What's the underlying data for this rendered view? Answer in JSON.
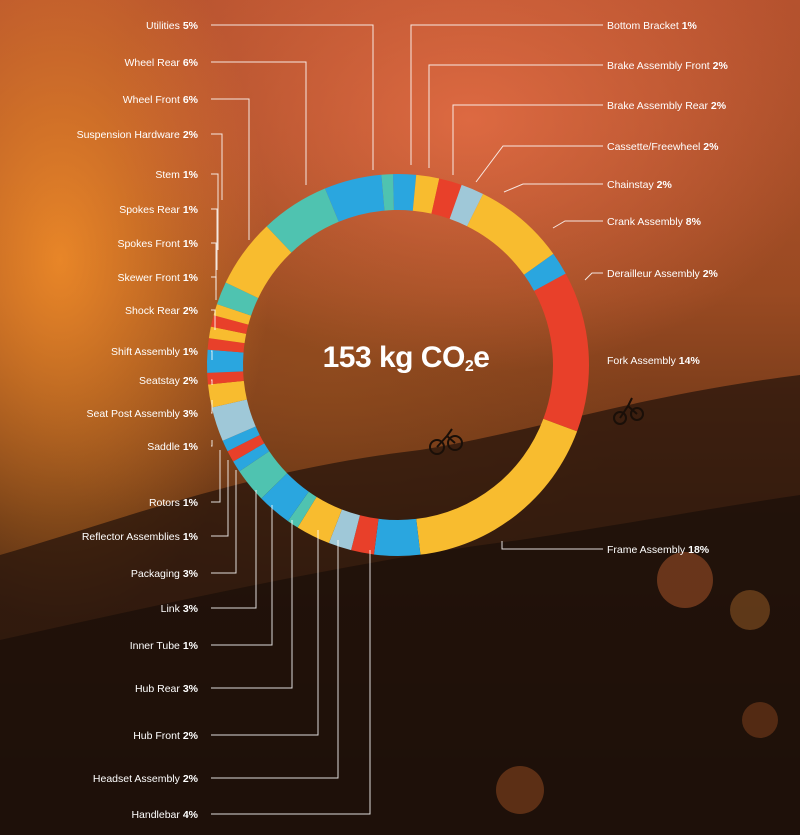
{
  "total": {
    "value": "153 kg CO",
    "sub": "2",
    "suffix": "e"
  },
  "colors": {
    "yellow": "#f8bc2f",
    "blue": "#2aa6df",
    "teal": "#4fc3b0",
    "red": "#e8402a",
    "lightblue": "#9fc8d8"
  },
  "chart_data": {
    "type": "pie",
    "variant": "donut",
    "unit": "%",
    "slices": [
      {
        "label": "Utilities",
        "value": 5,
        "side": "left"
      },
      {
        "label": "Wheel Rear",
        "value": 6,
        "side": "left"
      },
      {
        "label": "Wheel Front",
        "value": 6,
        "side": "left"
      },
      {
        "label": "Suspension Hardware",
        "value": 2,
        "side": "left"
      },
      {
        "label": "Stem",
        "value": 1,
        "side": "left"
      },
      {
        "label": "Spokes Rear",
        "value": 1,
        "side": "left"
      },
      {
        "label": "Spokes Front",
        "value": 1,
        "side": "left"
      },
      {
        "label": "Skewer Front",
        "value": 1,
        "side": "left"
      },
      {
        "label": "Shock Rear",
        "value": 2,
        "side": "left"
      },
      {
        "label": "Shift Assembly",
        "value": 1,
        "side": "left"
      },
      {
        "label": "Seatstay",
        "value": 2,
        "side": "left"
      },
      {
        "label": "Seat Post Assembly",
        "value": 3,
        "side": "left"
      },
      {
        "label": "Saddle",
        "value": 1,
        "side": "left"
      },
      {
        "label": "Rotors",
        "value": 1,
        "side": "left"
      },
      {
        "label": "Reflector Assemblies",
        "value": 1,
        "side": "left"
      },
      {
        "label": "Packaging",
        "value": 3,
        "side": "left"
      },
      {
        "label": "Link",
        "value": 3,
        "side": "left"
      },
      {
        "label": "Inner Tube",
        "value": 1,
        "side": "left"
      },
      {
        "label": "Hub Rear",
        "value": 3,
        "side": "left"
      },
      {
        "label": "Hub Front",
        "value": 2,
        "side": "left"
      },
      {
        "label": "Headset Assembly",
        "value": 2,
        "side": "left"
      },
      {
        "label": "Handlebar",
        "value": 4,
        "side": "left"
      },
      {
        "label": "Bottom Bracket",
        "value": 1,
        "side": "right"
      },
      {
        "label": "Brake Assembly Front",
        "value": 2,
        "side": "right"
      },
      {
        "label": "Brake Assembly Rear",
        "value": 2,
        "side": "right"
      },
      {
        "label": "Cassette/Freewheel",
        "value": 2,
        "side": "right"
      },
      {
        "label": "Chainstay",
        "value": 2,
        "side": "right"
      },
      {
        "label": "Crank Assembly",
        "value": 8,
        "side": "right"
      },
      {
        "label": "Derailleur Assembly",
        "value": 2,
        "side": "right"
      },
      {
        "label": "Fork Assembly",
        "value": 14,
        "side": "right"
      },
      {
        "label": "Frame Assembly",
        "value": 18,
        "side": "right"
      }
    ],
    "ring_segments": [
      {
        "value": 1,
        "color": "teal"
      },
      {
        "value": 2,
        "color": "blue"
      },
      {
        "value": 2,
        "color": "yellow"
      },
      {
        "value": 2,
        "color": "red"
      },
      {
        "value": 2,
        "color": "lightblue"
      },
      {
        "value": 8,
        "color": "yellow"
      },
      {
        "value": 2,
        "color": "blue"
      },
      {
        "value": 14,
        "color": "red"
      },
      {
        "value": 18,
        "color": "yellow"
      },
      {
        "value": 4,
        "color": "blue"
      },
      {
        "value": 2,
        "color": "red"
      },
      {
        "value": 2,
        "color": "lightblue"
      },
      {
        "value": 3,
        "color": "yellow"
      },
      {
        "value": 1,
        "color": "teal"
      },
      {
        "value": 3,
        "color": "blue"
      },
      {
        "value": 3,
        "color": "teal"
      },
      {
        "value": 1,
        "color": "blue"
      },
      {
        "value": 1,
        "color": "red"
      },
      {
        "value": 1,
        "color": "blue"
      },
      {
        "value": 3,
        "color": "lightblue"
      },
      {
        "value": 2,
        "color": "yellow"
      },
      {
        "value": 1,
        "color": "red"
      },
      {
        "value": 2,
        "color": "blue"
      },
      {
        "value": 1,
        "color": "red"
      },
      {
        "value": 1,
        "color": "yellow"
      },
      {
        "value": 1,
        "color": "red"
      },
      {
        "value": 1,
        "color": "yellow"
      },
      {
        "value": 2,
        "color": "teal"
      },
      {
        "value": 6,
        "color": "yellow"
      },
      {
        "value": 6,
        "color": "teal"
      },
      {
        "value": 5,
        "color": "blue"
      }
    ]
  }
}
